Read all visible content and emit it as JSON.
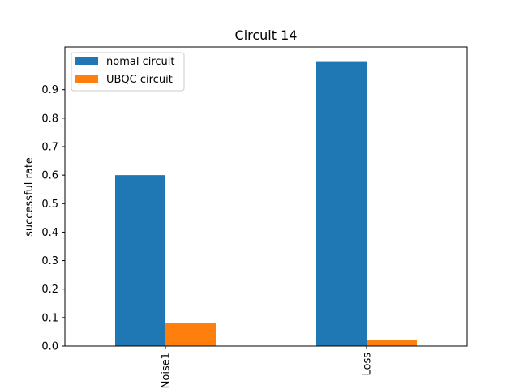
{
  "chart_data": {
    "type": "bar",
    "title": "Circuit 14",
    "xlabel": "",
    "ylabel": "successful rate",
    "categories": [
      "Noise1",
      "Loss"
    ],
    "series": [
      {
        "name": "nomal circuit",
        "values": [
          0.6,
          1.0
        ],
        "color": "#1f77b4"
      },
      {
        "name": "UBQC circuit",
        "values": [
          0.08,
          0.02
        ],
        "color": "#ff7f0e"
      }
    ],
    "ylim": [
      0,
      1.05
    ],
    "yticks": [
      0.0,
      0.1,
      0.2,
      0.3,
      0.4,
      0.5,
      0.6,
      0.7,
      0.8,
      0.9
    ],
    "ytick_labels": [
      "0.0",
      "0.1",
      "0.2",
      "0.3",
      "0.4",
      "0.5",
      "0.6",
      "0.7",
      "0.8",
      "0.9"
    ],
    "legend_position": "top-left",
    "grid": false
  }
}
